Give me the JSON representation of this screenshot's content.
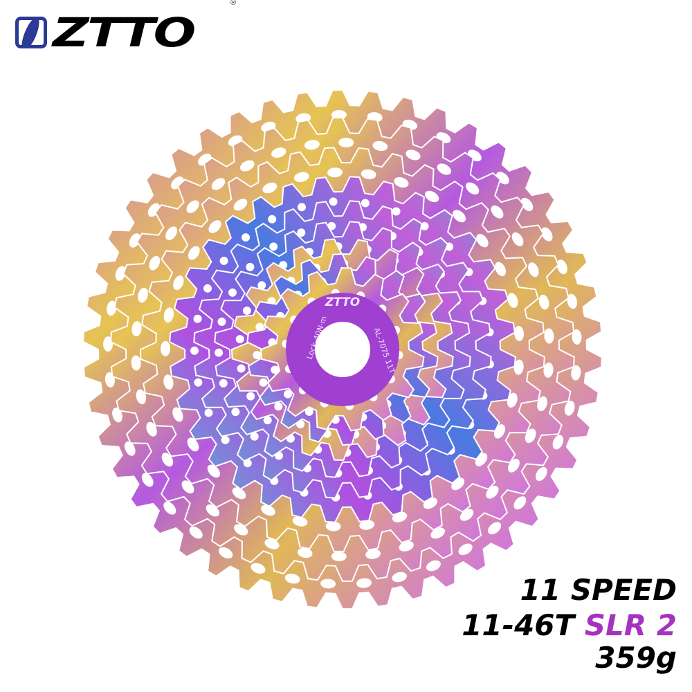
{
  "brand": {
    "logo_text": "ZTTO",
    "registered_mark": "®",
    "logo_color": "#2b3a94"
  },
  "product": {
    "lockring_engraving": [
      "ZTTO",
      "Lock-40N·m",
      "AL-7075 11T"
    ],
    "colors": {
      "purple": "#b14ee0",
      "magenta": "#d070d8",
      "yellow": "#e8c84a",
      "cyan": "#3cc8d0",
      "blue": "#4a7ae0",
      "lockring": "#a040d0"
    }
  },
  "specs": {
    "speed": "11 SPEED",
    "range": "11-46T",
    "model": "SLR 2",
    "weight": "359g",
    "model_color": "#a533c0"
  }
}
